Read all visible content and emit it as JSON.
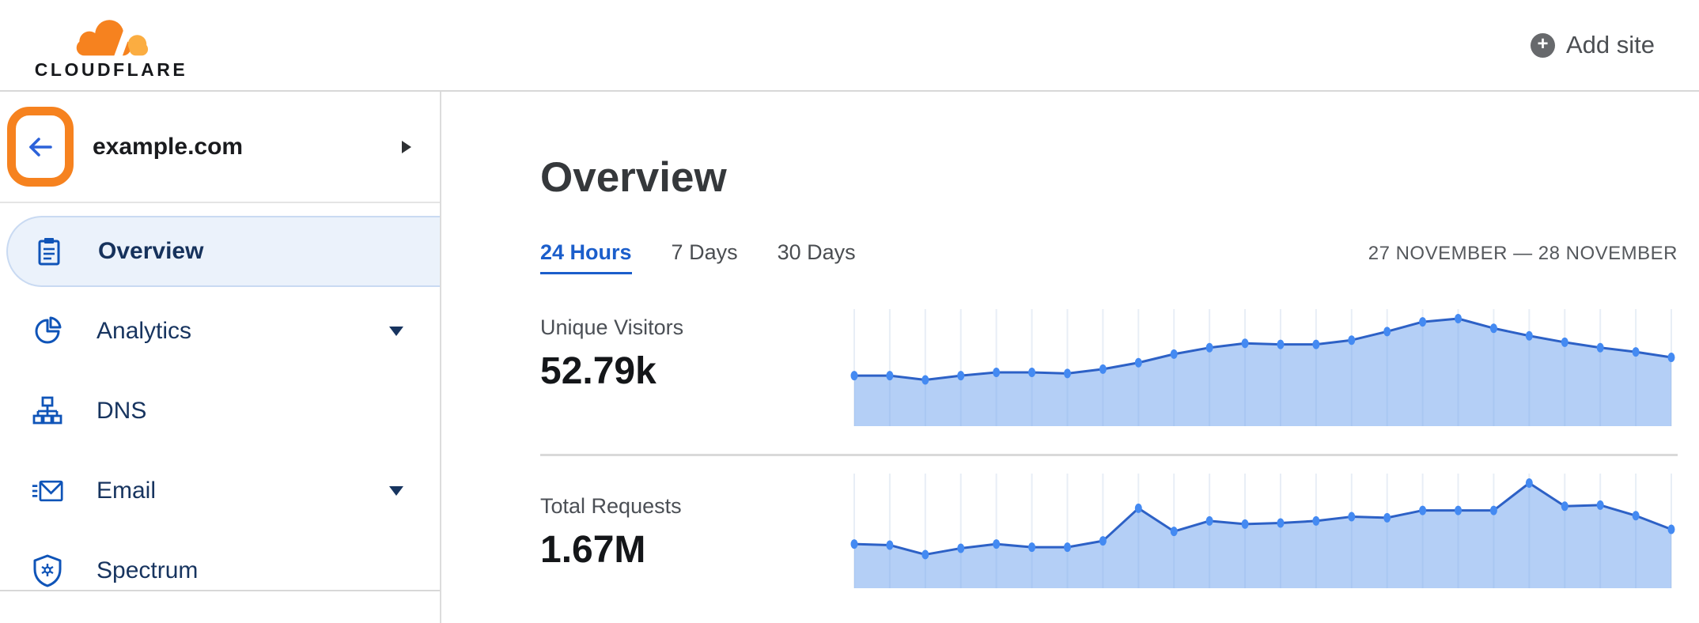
{
  "header": {
    "logo_text": "CLOUDFLARE",
    "add_site_label": "Add site"
  },
  "sidebar": {
    "site_name": "example.com",
    "items": [
      {
        "label": "Overview",
        "icon": "clipboard-icon",
        "active": true,
        "expandable": false
      },
      {
        "label": "Analytics",
        "icon": "pie-chart-icon",
        "active": false,
        "expandable": true
      },
      {
        "label": "DNS",
        "icon": "dns-tree-icon",
        "active": false,
        "expandable": false
      },
      {
        "label": "Email",
        "icon": "envelope-icon",
        "active": false,
        "expandable": true
      },
      {
        "label": "Spectrum",
        "icon": "shield-icon",
        "active": false,
        "expandable": false
      }
    ]
  },
  "main": {
    "title": "Overview",
    "tabs": [
      {
        "label": "24 Hours",
        "active": true
      },
      {
        "label": "7 Days",
        "active": false
      },
      {
        "label": "30 Days",
        "active": false
      }
    ],
    "date_range": "27 NOVEMBER — 28 NOVEMBER",
    "metrics": [
      {
        "label": "Unique Visitors",
        "value": "52.79k"
      },
      {
        "label": "Total Requests",
        "value": "1.67M"
      }
    ]
  },
  "colors": {
    "brand_orange": "#f6821f",
    "brand_orange_light": "#fbad41",
    "accent_blue": "#1b5ecb",
    "nav_navy": "#17345f",
    "active_pill_bg": "#ebf2fb",
    "active_pill_border": "#c9daf2",
    "chart_line": "#2d61c6",
    "chart_dot": "#448af2",
    "chart_fill": "rgba(105,160,238,0.5)",
    "chart_grid": "#e8eef6"
  },
  "chart_data": [
    {
      "type": "area",
      "title": "Unique Visitors",
      "period": "24 Hours",
      "total": "52.79k",
      "x": [
        0,
        1,
        2,
        3,
        4,
        5,
        6,
        7,
        8,
        9,
        10,
        11,
        12,
        13,
        14,
        15,
        16,
        17,
        18,
        19,
        20,
        21,
        22,
        23
      ],
      "values": [
        47,
        47,
        43,
        47,
        50,
        50,
        49,
        53,
        59,
        67,
        73,
        77,
        76,
        76,
        80,
        88,
        97,
        100,
        91,
        84,
        78,
        73,
        69,
        64
      ],
      "ylim": [
        0,
        100
      ],
      "xlabel": "",
      "ylabel": "",
      "grid": "vertical",
      "legend": "none",
      "note": "relative values 0-100 estimated from unlabeled sparkline; peak at hour 17"
    },
    {
      "type": "area",
      "title": "Total Requests",
      "period": "24 Hours",
      "total": "1.67M",
      "x": [
        0,
        1,
        2,
        3,
        4,
        5,
        6,
        7,
        8,
        9,
        10,
        11,
        12,
        13,
        14,
        15,
        16,
        17,
        18,
        19,
        20,
        21,
        22,
        23
      ],
      "values": [
        42,
        41,
        32,
        38,
        42,
        39,
        39,
        45,
        76,
        54,
        64,
        61,
        62,
        64,
        68,
        67,
        74,
        74,
        74,
        100,
        78,
        79,
        69,
        56
      ],
      "ylim": [
        0,
        100
      ],
      "xlabel": "",
      "ylabel": "",
      "grid": "vertical",
      "legend": "none",
      "note": "relative values 0-100 estimated from unlabeled sparkline; spike at hour 8, peak at hour 19"
    }
  ]
}
